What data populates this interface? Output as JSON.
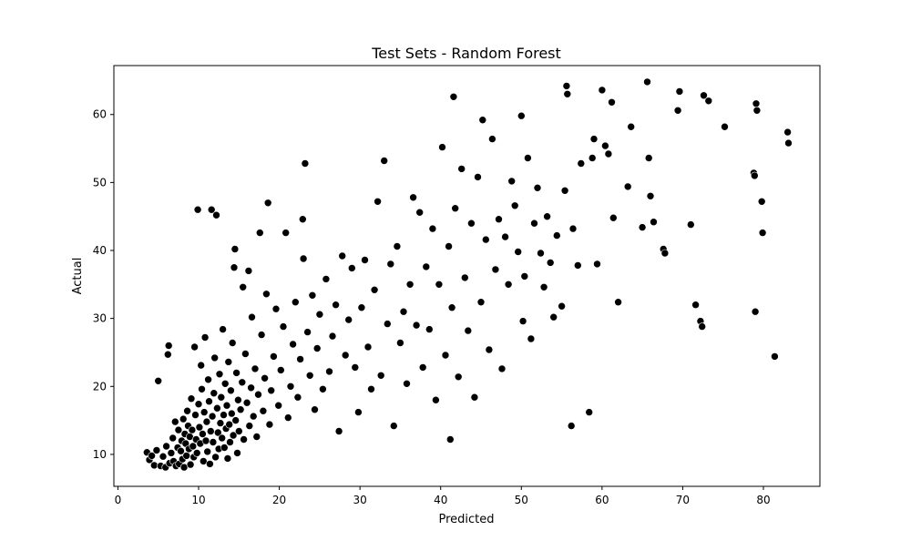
{
  "chart_data": {
    "type": "scatter",
    "title": "Test Sets - Random Forest",
    "xlabel": "Predicted",
    "ylabel": "Actual",
    "xlim": [
      -0.5,
      87.0
    ],
    "ylim": [
      5.3,
      67.2
    ],
    "xticks": [
      0,
      10,
      20,
      30,
      40,
      50,
      60,
      70,
      80
    ],
    "yticks": [
      10,
      20,
      30,
      40,
      50,
      60
    ],
    "grid": false,
    "legend": false,
    "marker_color": "#000000",
    "marker_edge": "#ffffff",
    "points": [
      [
        3.6,
        10.3
      ],
      [
        3.9,
        9.2
      ],
      [
        4.2,
        9.8
      ],
      [
        4.5,
        8.4
      ],
      [
        4.8,
        10.6
      ],
      [
        5.0,
        20.8
      ],
      [
        5.3,
        8.3
      ],
      [
        5.6,
        9.7
      ],
      [
        5.9,
        8.1
      ],
      [
        6.0,
        11.2
      ],
      [
        6.2,
        24.7
      ],
      [
        6.3,
        26.0
      ],
      [
        6.4,
        8.7
      ],
      [
        6.6,
        10.2
      ],
      [
        6.8,
        12.4
      ],
      [
        6.9,
        9.0
      ],
      [
        7.1,
        14.8
      ],
      [
        7.2,
        8.3
      ],
      [
        7.4,
        11.0
      ],
      [
        7.5,
        13.6
      ],
      [
        7.6,
        8.6
      ],
      [
        7.8,
        10.5
      ],
      [
        7.9,
        12.0
      ],
      [
        8.0,
        9.3
      ],
      [
        8.1,
        15.2
      ],
      [
        8.2,
        8.1
      ],
      [
        8.3,
        13.0
      ],
      [
        8.4,
        11.6
      ],
      [
        8.5,
        9.8
      ],
      [
        8.6,
        16.4
      ],
      [
        8.7,
        14.2
      ],
      [
        8.8,
        10.8
      ],
      [
        8.9,
        12.6
      ],
      [
        9.0,
        8.5
      ],
      [
        9.1,
        18.2
      ],
      [
        9.2,
        13.6
      ],
      [
        9.3,
        11.2
      ],
      [
        9.4,
        9.6
      ],
      [
        9.5,
        25.8
      ],
      [
        9.6,
        15.8
      ],
      [
        9.7,
        12.2
      ],
      [
        9.8,
        10.2
      ],
      [
        9.9,
        46.0
      ],
      [
        10.0,
        17.4
      ],
      [
        10.1,
        14.0
      ],
      [
        10.2,
        11.6
      ],
      [
        10.3,
        23.1
      ],
      [
        10.4,
        19.6
      ],
      [
        10.5,
        13.0
      ],
      [
        10.6,
        9.0
      ],
      [
        10.7,
        16.2
      ],
      [
        10.8,
        27.2
      ],
      [
        10.9,
        12.0
      ],
      [
        11.0,
        14.8
      ],
      [
        11.1,
        10.4
      ],
      [
        11.2,
        21.0
      ],
      [
        11.3,
        17.8
      ],
      [
        11.4,
        8.6
      ],
      [
        11.5,
        13.4
      ],
      [
        11.6,
        46.0
      ],
      [
        11.7,
        15.6
      ],
      [
        11.8,
        11.8
      ],
      [
        11.9,
        19.0
      ],
      [
        12.0,
        24.2
      ],
      [
        12.1,
        9.6
      ],
      [
        12.2,
        45.2
      ],
      [
        12.3,
        16.8
      ],
      [
        12.4,
        13.2
      ],
      [
        12.5,
        10.8
      ],
      [
        12.6,
        21.8
      ],
      [
        12.7,
        14.6
      ],
      [
        12.8,
        18.4
      ],
      [
        12.9,
        12.4
      ],
      [
        13.0,
        28.4
      ],
      [
        13.1,
        15.8
      ],
      [
        13.2,
        11.0
      ],
      [
        13.3,
        20.4
      ],
      [
        13.4,
        13.8
      ],
      [
        13.5,
        17.2
      ],
      [
        13.6,
        9.4
      ],
      [
        13.7,
        23.6
      ],
      [
        13.8,
        14.4
      ],
      [
        13.9,
        11.8
      ],
      [
        14.0,
        19.4
      ],
      [
        14.1,
        16.0
      ],
      [
        14.2,
        26.4
      ],
      [
        14.3,
        12.8
      ],
      [
        14.4,
        37.5
      ],
      [
        14.5,
        40.2
      ],
      [
        14.6,
        15.0
      ],
      [
        14.7,
        22.0
      ],
      [
        14.8,
        10.2
      ],
      [
        14.9,
        18.0
      ],
      [
        15.0,
        13.4
      ],
      [
        15.2,
        16.6
      ],
      [
        15.4,
        20.6
      ],
      [
        15.5,
        34.6
      ],
      [
        15.6,
        12.2
      ],
      [
        15.8,
        24.8
      ],
      [
        16.0,
        17.6
      ],
      [
        16.2,
        37.0
      ],
      [
        16.3,
        14.2
      ],
      [
        16.5,
        19.8
      ],
      [
        16.6,
        30.2
      ],
      [
        16.8,
        15.6
      ],
      [
        17.0,
        22.6
      ],
      [
        17.2,
        12.6
      ],
      [
        17.4,
        18.8
      ],
      [
        17.6,
        42.6
      ],
      [
        17.8,
        27.6
      ],
      [
        18.0,
        16.4
      ],
      [
        18.2,
        21.2
      ],
      [
        18.4,
        33.6
      ],
      [
        18.6,
        47.0
      ],
      [
        18.8,
        14.4
      ],
      [
        19.0,
        19.4
      ],
      [
        19.3,
        24.4
      ],
      [
        19.6,
        31.4
      ],
      [
        19.9,
        17.2
      ],
      [
        20.2,
        22.4
      ],
      [
        20.5,
        28.8
      ],
      [
        20.8,
        42.6
      ],
      [
        21.1,
        15.4
      ],
      [
        21.4,
        20.0
      ],
      [
        21.7,
        26.2
      ],
      [
        22.0,
        32.4
      ],
      [
        22.3,
        18.4
      ],
      [
        22.6,
        24.0
      ],
      [
        22.9,
        44.6
      ],
      [
        23.0,
        38.8
      ],
      [
        23.2,
        52.8
      ],
      [
        23.5,
        28.0
      ],
      [
        23.8,
        21.6
      ],
      [
        24.1,
        33.4
      ],
      [
        24.4,
        16.6
      ],
      [
        24.7,
        25.6
      ],
      [
        25.0,
        30.6
      ],
      [
        25.4,
        19.6
      ],
      [
        25.8,
        35.8
      ],
      [
        26.2,
        22.2
      ],
      [
        26.6,
        27.4
      ],
      [
        27.0,
        32.0
      ],
      [
        27.4,
        13.4
      ],
      [
        27.8,
        39.2
      ],
      [
        28.2,
        24.6
      ],
      [
        28.6,
        29.8
      ],
      [
        29.0,
        37.4
      ],
      [
        29.4,
        22.8
      ],
      [
        29.8,
        16.2
      ],
      [
        30.2,
        31.6
      ],
      [
        30.6,
        38.6
      ],
      [
        31.0,
        25.8
      ],
      [
        31.4,
        19.6
      ],
      [
        31.8,
        34.2
      ],
      [
        32.2,
        47.2
      ],
      [
        32.6,
        21.6
      ],
      [
        33.0,
        53.2
      ],
      [
        33.4,
        29.2
      ],
      [
        33.8,
        38.0
      ],
      [
        34.2,
        14.2
      ],
      [
        34.6,
        40.6
      ],
      [
        35.0,
        26.4
      ],
      [
        35.4,
        31.0
      ],
      [
        35.8,
        20.4
      ],
      [
        36.2,
        35.0
      ],
      [
        36.6,
        47.8
      ],
      [
        37.0,
        29.0
      ],
      [
        37.4,
        45.6
      ],
      [
        37.8,
        22.8
      ],
      [
        38.2,
        37.6
      ],
      [
        38.6,
        28.4
      ],
      [
        39.0,
        43.2
      ],
      [
        39.4,
        18.0
      ],
      [
        39.8,
        35.0
      ],
      [
        40.2,
        55.2
      ],
      [
        40.6,
        24.6
      ],
      [
        41.0,
        40.6
      ],
      [
        41.2,
        12.2
      ],
      [
        41.4,
        31.6
      ],
      [
        41.6,
        62.6
      ],
      [
        41.8,
        46.2
      ],
      [
        42.2,
        21.4
      ],
      [
        42.6,
        52.0
      ],
      [
        43.0,
        36.0
      ],
      [
        43.4,
        28.2
      ],
      [
        43.8,
        44.0
      ],
      [
        44.2,
        18.4
      ],
      [
        44.6,
        50.8
      ],
      [
        45.0,
        32.4
      ],
      [
        45.2,
        59.2
      ],
      [
        45.6,
        41.6
      ],
      [
        46.0,
        25.4
      ],
      [
        46.4,
        56.4
      ],
      [
        46.8,
        37.2
      ],
      [
        47.2,
        44.6
      ],
      [
        47.6,
        22.6
      ],
      [
        48.0,
        42.0
      ],
      [
        48.4,
        35.0
      ],
      [
        48.8,
        50.2
      ],
      [
        49.2,
        46.6
      ],
      [
        49.6,
        39.8
      ],
      [
        50.0,
        59.8
      ],
      [
        50.2,
        29.6
      ],
      [
        50.4,
        36.2
      ],
      [
        50.8,
        53.6
      ],
      [
        51.2,
        27.0
      ],
      [
        51.6,
        44.0
      ],
      [
        52.0,
        49.2
      ],
      [
        52.4,
        39.6
      ],
      [
        52.8,
        34.6
      ],
      [
        53.2,
        45.0
      ],
      [
        53.6,
        38.2
      ],
      [
        54.0,
        30.2
      ],
      [
        54.4,
        42.2
      ],
      [
        55.0,
        31.8
      ],
      [
        55.4,
        48.8
      ],
      [
        55.6,
        64.2
      ],
      [
        55.7,
        63.0
      ],
      [
        56.2,
        14.2
      ],
      [
        56.4,
        43.2
      ],
      [
        57.0,
        37.8
      ],
      [
        57.4,
        52.8
      ],
      [
        58.4,
        16.2
      ],
      [
        58.8,
        53.6
      ],
      [
        59.0,
        56.4
      ],
      [
        59.4,
        38.0
      ],
      [
        60.0,
        63.6
      ],
      [
        60.4,
        55.4
      ],
      [
        60.8,
        54.2
      ],
      [
        61.2,
        61.8
      ],
      [
        61.4,
        44.8
      ],
      [
        62.0,
        32.4
      ],
      [
        63.2,
        49.4
      ],
      [
        63.6,
        58.2
      ],
      [
        65.0,
        43.4
      ],
      [
        65.6,
        64.8
      ],
      [
        65.8,
        53.6
      ],
      [
        66.0,
        48.0
      ],
      [
        66.4,
        44.2
      ],
      [
        67.6,
        40.2
      ],
      [
        67.8,
        39.6
      ],
      [
        69.4,
        60.6
      ],
      [
        69.6,
        63.4
      ],
      [
        71.0,
        43.8
      ],
      [
        71.6,
        32.0
      ],
      [
        72.2,
        29.6
      ],
      [
        72.4,
        28.8
      ],
      [
        72.6,
        62.8
      ],
      [
        73.2,
        62.0
      ],
      [
        75.2,
        58.2
      ],
      [
        78.8,
        51.4
      ],
      [
        78.9,
        51.0
      ],
      [
        79.0,
        31.0
      ],
      [
        79.1,
        61.6
      ],
      [
        79.2,
        60.6
      ],
      [
        79.8,
        47.2
      ],
      [
        79.9,
        42.6
      ],
      [
        81.4,
        24.4
      ],
      [
        83.0,
        57.4
      ],
      [
        83.1,
        55.8
      ]
    ]
  }
}
